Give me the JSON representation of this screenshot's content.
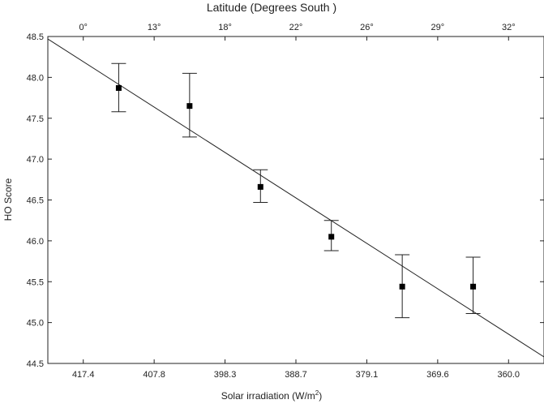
{
  "chart_data": {
    "type": "scatter",
    "title": "",
    "xlabel": "Solar irradiation (W/m",
    "xlabel_superscript": "2",
    "xlabel_suffix": ")",
    "ylabel": "HO Score",
    "top_axis_label": "Latitude (Degrees South )",
    "ylim": [
      44.5,
      48.5
    ],
    "y_ticks": [
      "44.5",
      "45.0",
      "45.5",
      "46.0",
      "46.5",
      "47.0",
      "47.5",
      "48.0",
      "48.5"
    ],
    "x_ticks_bottom": [
      "417.4",
      "407.8",
      "398.3",
      "388.7",
      "379.1",
      "369.6",
      "360.0"
    ],
    "x_ticks_top": [
      "0°",
      "13°",
      "18°",
      "22°",
      "26°",
      "29°",
      "32°"
    ],
    "series": [
      {
        "x_index": [
          0.5,
          1.5,
          2.5,
          3.5,
          4.5,
          5.5
        ],
        "values": [
          47.87,
          47.65,
          46.66,
          46.05,
          45.44,
          45.44
        ],
        "error_low": [
          47.58,
          47.27,
          46.47,
          45.88,
          45.06,
          45.11
        ],
        "error_high": [
          48.17,
          48.05,
          46.87,
          46.25,
          45.83,
          45.8
        ]
      }
    ],
    "fit_line": {
      "x_index": [
        -0.5,
        6.5
      ],
      "values": [
        48.47,
        44.58
      ]
    },
    "grid": false,
    "legend": "none"
  },
  "colors": {
    "ink": "#222222",
    "marker": "#000000",
    "background": "#ffffff"
  }
}
